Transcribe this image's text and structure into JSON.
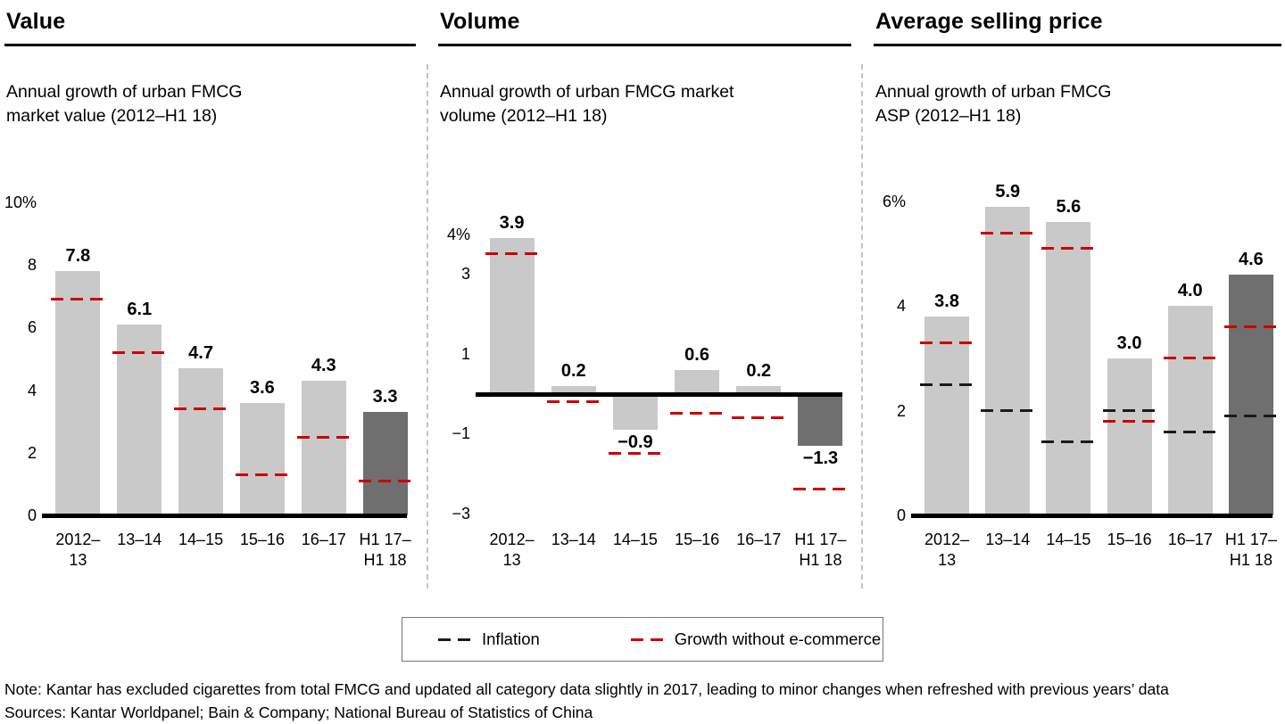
{
  "colors": {
    "bar": "#c9c9c9",
    "bar_highlight": "#6f6f6f",
    "inflation": "#1a1a1a",
    "no_ecommerce": "#cc0000",
    "baseline": "#000000"
  },
  "legend": {
    "items": [
      {
        "label": "Inflation",
        "color": "#1a1a1a"
      },
      {
        "label": "Growth without e-commerce",
        "color": "#cc0000"
      }
    ]
  },
  "footnotes": {
    "note": "Note: Kantar has excluded cigarettes from total FMCG and updated all category data slightly in 2017, leading to minor changes when refreshed with previous years’ data",
    "sources": "Sources: Kantar Worldpanel; Bain & Company; National Bureau of Statistics of China"
  },
  "chart_data": [
    {
      "type": "bar",
      "title": "Value",
      "subtitle": "Annual growth of urban FMCG market value (2012–H1 18)",
      "subtitle_lines": [
        "Annual growth of urban FMCG",
        "market value (2012–H1 18)"
      ],
      "categories": [
        "2012–13",
        "13–14",
        "14–15",
        "15–16",
        "16–17",
        "H1 17–H1 18"
      ],
      "category_lines": [
        [
          "2012–",
          "13"
        ],
        [
          "13–14"
        ],
        [
          "14–15"
        ],
        [
          "15–16"
        ],
        [
          "16–17"
        ],
        [
          "H1 17–",
          "H1 18"
        ]
      ],
      "values": [
        7.8,
        6.1,
        4.7,
        3.6,
        4.3,
        3.3
      ],
      "growth_without_ecommerce": [
        6.9,
        5.2,
        3.4,
        1.3,
        2.5,
        1.1
      ],
      "inflation": null,
      "highlight_index": 5,
      "ylabel": "",
      "ylim": [
        0,
        10
      ],
      "axis_range": [
        0,
        10.2
      ],
      "ticks": [
        {
          "v": 10,
          "label": "10%"
        },
        {
          "v": 8,
          "label": "8"
        },
        {
          "v": 6,
          "label": "6"
        },
        {
          "v": 4,
          "label": "4"
        },
        {
          "v": 2,
          "label": "2"
        },
        {
          "v": 0,
          "label": "0"
        }
      ]
    },
    {
      "type": "bar",
      "title": "Volume",
      "subtitle": "Annual growth of urban FMCG market volume (2012–H1 18)",
      "subtitle_lines": [
        "Annual growth of urban FMCG market",
        "volume (2012–H1 18)"
      ],
      "categories": [
        "2012–13",
        "13–14",
        "14–15",
        "15–16",
        "16–17",
        "H1 17–H1 18"
      ],
      "category_lines": [
        [
          "2012–",
          "13"
        ],
        [
          "13–14"
        ],
        [
          "14–15"
        ],
        [
          "15–16"
        ],
        [
          "16–17"
        ],
        [
          "H1 17–",
          "H1 18"
        ]
      ],
      "values": [
        3.9,
        0.2,
        -0.9,
        0.6,
        0.2,
        -1.3
      ],
      "growth_without_ecommerce": [
        3.5,
        -0.2,
        -1.5,
        -0.5,
        -0.6,
        -2.4
      ],
      "inflation": null,
      "highlight_index": 5,
      "ylabel": "",
      "ylim": [
        -3,
        4
      ],
      "axis_range": [
        -3.05,
        4.95
      ],
      "ticks": [
        {
          "v": 4,
          "label": "4%"
        },
        {
          "v": 3,
          "label": "3"
        },
        {
          "v": 1,
          "label": "1"
        },
        {
          "v": -1,
          "label": "−1"
        },
        {
          "v": -3,
          "label": "−3"
        }
      ]
    },
    {
      "type": "bar",
      "title": "Average selling price",
      "subtitle": "Annual growth of urban FMCG ASP (2012–H1 18)",
      "subtitle_lines": [
        "Annual growth of urban FMCG",
        "ASP (2012–H1 18)"
      ],
      "categories": [
        "2012–13",
        "13–14",
        "14–15",
        "15–16",
        "16–17",
        "H1 17–H1 18"
      ],
      "category_lines": [
        [
          "2012–",
          "13"
        ],
        [
          "13–14"
        ],
        [
          "14–15"
        ],
        [
          "15–16"
        ],
        [
          "16–17"
        ],
        [
          "H1 17–",
          "H1 18"
        ]
      ],
      "values": [
        3.8,
        5.9,
        5.6,
        3.0,
        4.0,
        4.6
      ],
      "growth_without_ecommerce": [
        3.3,
        5.4,
        5.1,
        1.8,
        3.0,
        3.6
      ],
      "inflation": [
        2.5,
        2.0,
        1.4,
        2.0,
        1.6,
        1.9
      ],
      "highlight_index": 5,
      "ylabel": "",
      "ylim": [
        0,
        6
      ],
      "axis_range": [
        0,
        6.1
      ],
      "ticks": [
        {
          "v": 6,
          "label": "6%"
        },
        {
          "v": 4,
          "label": "4"
        },
        {
          "v": 2,
          "label": "2"
        },
        {
          "v": 0,
          "label": "0"
        }
      ]
    }
  ]
}
